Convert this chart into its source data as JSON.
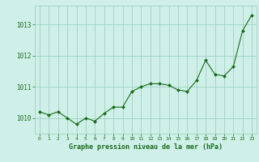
{
  "x": [
    0,
    1,
    2,
    3,
    4,
    5,
    6,
    7,
    8,
    9,
    10,
    11,
    12,
    13,
    14,
    15,
    16,
    17,
    18,
    19,
    20,
    21,
    22,
    23
  ],
  "y": [
    1010.2,
    1010.1,
    1010.2,
    1010.0,
    1009.8,
    1010.0,
    1009.9,
    1010.15,
    1010.35,
    1010.35,
    1010.85,
    1011.0,
    1011.1,
    1011.1,
    1011.05,
    1010.9,
    1010.85,
    1011.2,
    1011.85,
    1011.4,
    1011.35,
    1011.65,
    1012.8,
    1013.3
  ],
  "line_color": "#1a6b1a",
  "marker": "D",
  "marker_size": 2.0,
  "background_color": "#cef0e8",
  "grid_color": "#99ccbb",
  "xlabel": "Graphe pression niveau de la mer (hPa)",
  "xlabel_color": "#1a6b1a",
  "tick_color": "#1a6b1a",
  "ylim": [
    1009.5,
    1013.6
  ],
  "yticks": [
    1010,
    1011,
    1012,
    1013
  ],
  "xlim": [
    -0.5,
    23.5
  ],
  "xticks": [
    0,
    1,
    2,
    3,
    4,
    5,
    6,
    7,
    8,
    9,
    10,
    11,
    12,
    13,
    14,
    15,
    16,
    17,
    18,
    19,
    20,
    21,
    22,
    23
  ],
  "linewidth": 0.8
}
